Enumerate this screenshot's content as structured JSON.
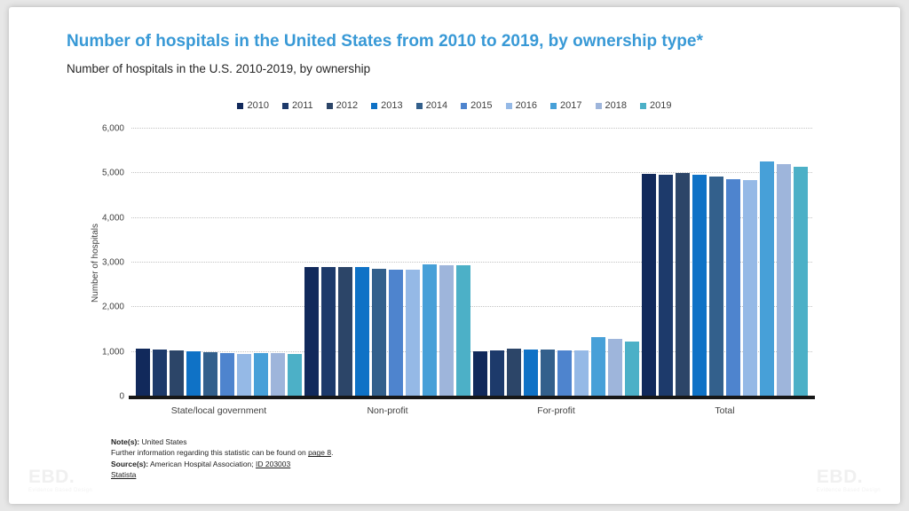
{
  "page": {
    "title": "Number of hospitals in the United States from 2010 to 2019, by ownership type*",
    "title_color": "#3899d6",
    "subtitle": "Number of hospitals in the U.S. 2010-2019, by ownership",
    "watermark_logo": "EBD.",
    "watermark_tagline": "Evidence Based Design"
  },
  "notes": {
    "note_label": "Note(s):",
    "note_text": " United States",
    "further_pre": "Further information regarding this statistic can be found on ",
    "further_link": "page 8",
    "further_post": ".",
    "source_label": "Source(s):",
    "source_text": " American Hospital Association; ",
    "source_link": "ID 203003",
    "statista_link": "Statista"
  },
  "chart_data": {
    "type": "bar",
    "title": "Number of hospitals in the United States from 2010 to 2019, by ownership type*",
    "subtitle": "Number of hospitals in the U.S. 2010-2019, by ownership",
    "xlabel": "",
    "ylabel": "Number of hospitals",
    "ylim": [
      0,
      6000
    ],
    "ytick_step": 1000,
    "grid": "horizontal-dotted",
    "legend_position": "top",
    "categories": [
      "State/local government",
      "Non-profit",
      "For-profit",
      "Total"
    ],
    "series": [
      {
        "name": "2010",
        "color": "#11295b",
        "values": [
          1068,
          2904,
          1013,
          4985
        ]
      },
      {
        "name": "2011",
        "color": "#1d3a6b",
        "values": [
          1045,
          2903,
          1025,
          4973
        ]
      },
      {
        "name": "2012",
        "color": "#2c4568",
        "values": [
          1037,
          2894,
          1068,
          4999
        ]
      },
      {
        "name": "2013",
        "color": "#0f72c6",
        "values": [
          1010,
          2904,
          1060,
          4974
        ]
      },
      {
        "name": "2014",
        "color": "#33608c",
        "values": [
          1003,
          2870,
          1053,
          4926
        ]
      },
      {
        "name": "2015",
        "color": "#4e84ce",
        "values": [
          983,
          2845,
          1034,
          4862
        ]
      },
      {
        "name": "2016",
        "color": "#95b9e6",
        "values": [
          956,
          2849,
          1035,
          4840
        ]
      },
      {
        "name": "2017",
        "color": "#47a0d8",
        "values": [
          972,
          2968,
          1322,
          5262
        ]
      },
      {
        "name": "2018",
        "color": "#9eb5db",
        "values": [
          965,
          2937,
          1296,
          5198
        ]
      },
      {
        "name": "2019",
        "color": "#4cb0c7",
        "values": [
          962,
          2946,
          1233,
          5141
        ]
      }
    ]
  }
}
